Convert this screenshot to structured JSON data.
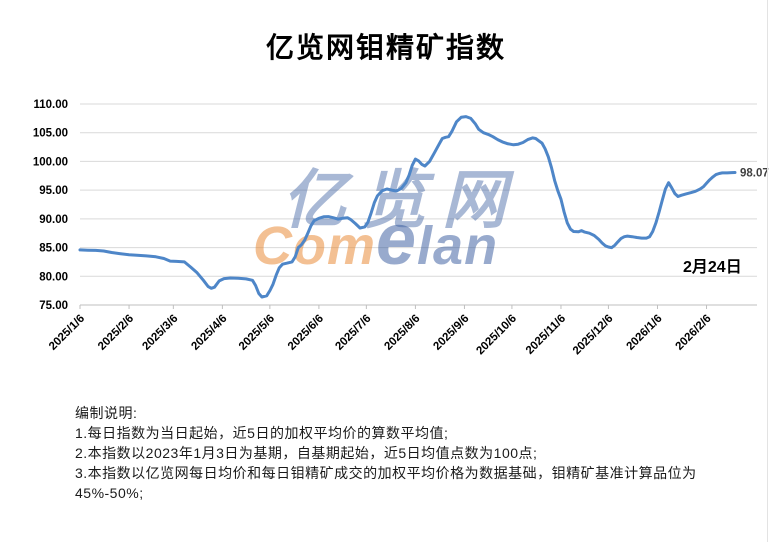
{
  "title": "亿览网钼精矿指数",
  "watermark": {
    "line1": "亿览网",
    "line2_part1": "Com",
    "line2_part2": "e",
    "line2_part3": "lan",
    "blue": "#33589c",
    "orange": "#e8832a",
    "opacity": 0.42
  },
  "notes": {
    "heading": "编制说明:",
    "line1": "1.每日指数为当日起始，近5日的加权平均价的算数平均值;",
    "line2": "2.本指数以2023年1月3日为基期，自基期起始，近5日均值点数为100点;",
    "line3": "3.本指数以亿览网每日均价和每日钼精矿成交的加权平均价格为数据基础，钼精矿基准计算品位为45%-50%;"
  },
  "chart_data": {
    "type": "line",
    "title": "亿览网钼精矿指数",
    "xlabel": "",
    "ylabel": "",
    "ylim": [
      75,
      110
    ],
    "y_ticks": [
      75,
      80,
      85,
      90,
      95,
      100,
      105,
      110
    ],
    "y_tick_labels": [
      "75.00",
      "80.00",
      "85.00",
      "90.00",
      "95.00",
      "100.00",
      "105.00",
      "110.00"
    ],
    "x_unit": "days since 2025/1/6",
    "x_tick_days": [
      0,
      31,
      59,
      90,
      120,
      151,
      181,
      212,
      243,
      273,
      304,
      334,
      365,
      396
    ],
    "x_tick_labels": [
      "2025/1/6",
      "2025/2/6",
      "2025/3/6",
      "2025/4/6",
      "2025/5/6",
      "2025/6/6",
      "2025/7/6",
      "2025/8/6",
      "2025/9/6",
      "2025/10/6",
      "2025/11/6",
      "2025/12/6",
      "2026/1/6",
      "2026/2/6"
    ],
    "grid": true,
    "legend": false,
    "line_color": "#4e86c8",
    "grid_color": "#d9d9d9",
    "axis_color": "#bfbfbf",
    "end_label": "98.07",
    "end_value": 98.07,
    "annotation": "2月24日",
    "points": [
      [
        0,
        84.6
      ],
      [
        5,
        84.55
      ],
      [
        10,
        84.5
      ],
      [
        15,
        84.4
      ],
      [
        20,
        84.15
      ],
      [
        25,
        83.95
      ],
      [
        31,
        83.75
      ],
      [
        36,
        83.65
      ],
      [
        42,
        83.55
      ],
      [
        48,
        83.4
      ],
      [
        53,
        83.1
      ],
      [
        57,
        82.65
      ],
      [
        61,
        82.6
      ],
      [
        66,
        82.5
      ],
      [
        70,
        81.6
      ],
      [
        74,
        80.6
      ],
      [
        78,
        79.3
      ],
      [
        81,
        78.2
      ],
      [
        83,
        77.9
      ],
      [
        85,
        78.1
      ],
      [
        88,
        79.2
      ],
      [
        91,
        79.6
      ],
      [
        95,
        79.7
      ],
      [
        100,
        79.65
      ],
      [
        105,
        79.55
      ],
      [
        109,
        79.3
      ],
      [
        111,
        78.4
      ],
      [
        113,
        77.0
      ],
      [
        115,
        76.4
      ],
      [
        118,
        76.6
      ],
      [
        120,
        77.5
      ],
      [
        122,
        78.6
      ],
      [
        124,
        80.2
      ],
      [
        126,
        81.5
      ],
      [
        128,
        82.1
      ],
      [
        131,
        82.3
      ],
      [
        134,
        82.5
      ],
      [
        136,
        83.4
      ],
      [
        138,
        85.0
      ],
      [
        140,
        85.5
      ],
      [
        142,
        86.3
      ],
      [
        144,
        87.5
      ],
      [
        146,
        88.8
      ],
      [
        148,
        89.7
      ],
      [
        151,
        90.1
      ],
      [
        154,
        90.35
      ],
      [
        157,
        90.4
      ],
      [
        160,
        90.2
      ],
      [
        163,
        89.95
      ],
      [
        166,
        90.1
      ],
      [
        169,
        90.2
      ],
      [
        171,
        89.9
      ],
      [
        174,
        89.2
      ],
      [
        177,
        88.4
      ],
      [
        180,
        88.6
      ],
      [
        182,
        89.4
      ],
      [
        184,
        91.0
      ],
      [
        186,
        92.8
      ],
      [
        188,
        94.0
      ],
      [
        191,
        94.9
      ],
      [
        194,
        95.2
      ],
      [
        197,
        95.0
      ],
      [
        200,
        94.85
      ],
      [
        203,
        95.3
      ],
      [
        206,
        96.3
      ],
      [
        208,
        97.6
      ],
      [
        210,
        99.3
      ],
      [
        212,
        100.4
      ],
      [
        214,
        100.1
      ],
      [
        216,
        99.5
      ],
      [
        218,
        99.2
      ],
      [
        221,
        100.0
      ],
      [
        224,
        101.5
      ],
      [
        227,
        103.0
      ],
      [
        229,
        104.0
      ],
      [
        231,
        104.2
      ],
      [
        233,
        104.3
      ],
      [
        235,
        105.2
      ],
      [
        238,
        106.9
      ],
      [
        241,
        107.7
      ],
      [
        244,
        107.8
      ],
      [
        247,
        107.5
      ],
      [
        250,
        106.5
      ],
      [
        252,
        105.6
      ],
      [
        255,
        105.0
      ],
      [
        258,
        104.7
      ],
      [
        261,
        104.3
      ],
      [
        264,
        103.8
      ],
      [
        267,
        103.4
      ],
      [
        270,
        103.1
      ],
      [
        274,
        102.9
      ],
      [
        277,
        103.0
      ],
      [
        280,
        103.3
      ],
      [
        283,
        103.8
      ],
      [
        286,
        104.1
      ],
      [
        288,
        104.0
      ],
      [
        290,
        103.6
      ],
      [
        292,
        103.2
      ],
      [
        294,
        102.2
      ],
      [
        296,
        100.8
      ],
      [
        298,
        98.9
      ],
      [
        300,
        96.7
      ],
      [
        302,
        94.9
      ],
      [
        304,
        93.4
      ],
      [
        306,
        91.2
      ],
      [
        308,
        89.3
      ],
      [
        310,
        88.2
      ],
      [
        312,
        87.8
      ],
      [
        315,
        87.75
      ],
      [
        317,
        87.95
      ],
      [
        319,
        87.7
      ],
      [
        322,
        87.5
      ],
      [
        325,
        87.1
      ],
      [
        328,
        86.4
      ],
      [
        330,
        85.8
      ],
      [
        332,
        85.3
      ],
      [
        334,
        85.1
      ],
      [
        336,
        85.0
      ],
      [
        338,
        85.4
      ],
      [
        340,
        86.0
      ],
      [
        342,
        86.6
      ],
      [
        344,
        86.9
      ],
      [
        346,
        87.0
      ],
      [
        349,
        86.9
      ],
      [
        352,
        86.75
      ],
      [
        355,
        86.65
      ],
      [
        358,
        86.65
      ],
      [
        360,
        86.9
      ],
      [
        362,
        87.8
      ],
      [
        364,
        89.3
      ],
      [
        366,
        91.2
      ],
      [
        368,
        93.2
      ],
      [
        370,
        95.2
      ],
      [
        372,
        96.3
      ],
      [
        374,
        95.4
      ],
      [
        376,
        94.4
      ],
      [
        378,
        93.9
      ],
      [
        380,
        94.1
      ],
      [
        383,
        94.35
      ],
      [
        386,
        94.55
      ],
      [
        389,
        94.8
      ],
      [
        392,
        95.2
      ],
      [
        394,
        95.6
      ],
      [
        396,
        96.2
      ],
      [
        398,
        96.8
      ],
      [
        400,
        97.3
      ],
      [
        402,
        97.7
      ],
      [
        404,
        97.9
      ],
      [
        406,
        98.0
      ],
      [
        409,
        98.0
      ],
      [
        412,
        98.05
      ],
      [
        414,
        98.07
      ]
    ]
  }
}
